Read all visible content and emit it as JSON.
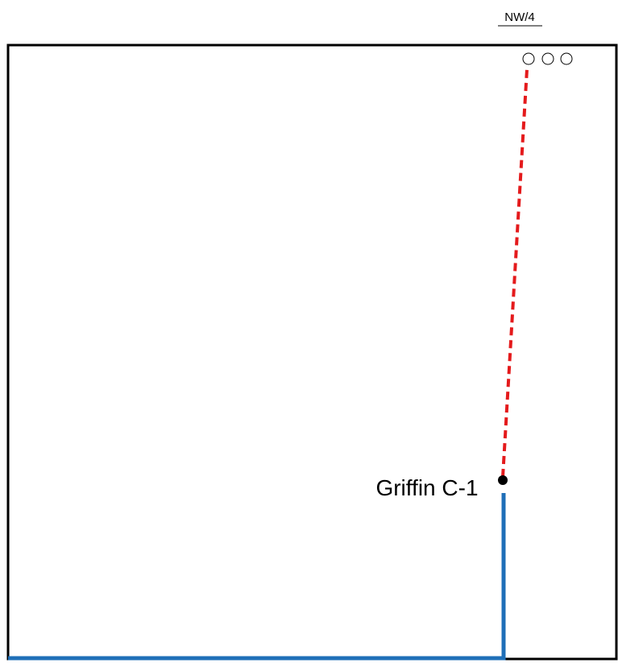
{
  "diagram": {
    "section_label": "NW/4",
    "well_label": "Griffin C-1",
    "colors": {
      "section_border": "#000000",
      "surface_path": "#1f6fb8",
      "lateral_path": "#e41a1c",
      "well_marker": "#000000",
      "planned_well_circles": "#000000"
    },
    "symbols": {
      "planned_wells": [
        "circle-outline-icon",
        "circle-outline-icon",
        "circle-outline-icon"
      ],
      "well_marker": "filled-dot-icon"
    }
  }
}
